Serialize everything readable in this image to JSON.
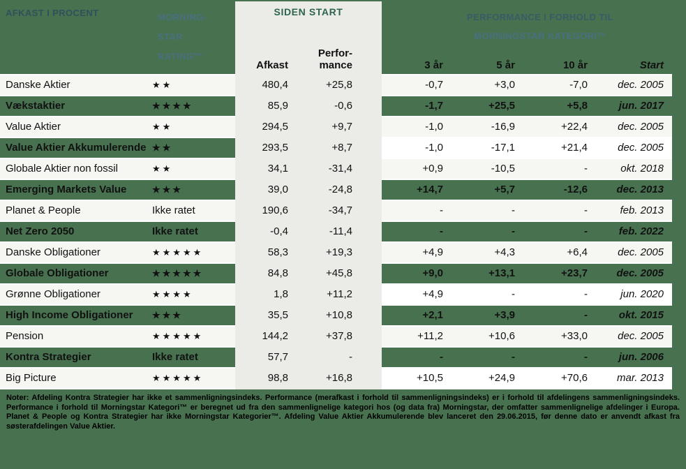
{
  "colors": {
    "page_green": "#47714F",
    "row_tint": "#F6F6F2",
    "row_white": "#FFFFFF",
    "gray_block": "#EBECE7",
    "header_title_dark": "#31505C",
    "header_title_light": "#4A7080",
    "siden_start_text": "#2E6350",
    "body_text": "#111111"
  },
  "header": {
    "left_title": "AFKAST I PROCENT",
    "rating_title_lines": [
      "MORNING-",
      "STAR",
      "RATING™"
    ],
    "siden_start_title": "SIDEN START",
    "afkast_label": "Afkast",
    "performance_label_lines": [
      "Perfor-",
      "mance"
    ],
    "right_title_lines": [
      "PERFORMANCE I FORHOLD TIL",
      "MORNINGSTAR KATEGORI™"
    ],
    "period_labels": {
      "y3": "3 år",
      "y5": "5 år",
      "y10": "10 år",
      "start": "Start"
    }
  },
  "rows": [
    {
      "name": "Danske Aktier",
      "rating": "★★",
      "afkast": "480,4",
      "performance": "+25,8",
      "y3": "-0,7",
      "y5": "+3,0",
      "y10": "-7,0",
      "start": "dec. 2005",
      "left_bg": "tint",
      "right_bg": "tint"
    },
    {
      "name": "Vækstaktier",
      "rating": "★★★★",
      "afkast": "85,9",
      "performance": "-0,6",
      "y3": "-1,7",
      "y5": "+25,5",
      "y10": "+5,8",
      "start": "jun. 2017",
      "left_bg": "green",
      "right_bg": "green"
    },
    {
      "name": "Value Aktier",
      "rating": "★★",
      "afkast": "294,5",
      "performance": "+9,7",
      "y3": "-1,0",
      "y5": "-16,9",
      "y10": "+22,4",
      "start": "dec. 2005",
      "left_bg": "tint",
      "right_bg": "tint"
    },
    {
      "name": "Value Aktier Akkumulerende",
      "rating": "★★",
      "afkast": "293,5",
      "performance": "+8,7",
      "y3": "-1,0",
      "y5": "-17,1",
      "y10": "+21,4",
      "start": "dec. 2005",
      "left_bg": "green",
      "right_bg": "white"
    },
    {
      "name": "Globale Aktier non fossil",
      "rating": "★★",
      "afkast": "34,1",
      "performance": "-31,4",
      "y3": "+0,9",
      "y5": "-10,5",
      "y10": "-",
      "start": "okt. 2018",
      "left_bg": "tint",
      "right_bg": "tint"
    },
    {
      "name": "Emerging Markets Value",
      "rating": "★★★",
      "afkast": "39,0",
      "performance": "-24,8",
      "y3": "+14,7",
      "y5": "+5,7",
      "y10": "-12,6",
      "start": "dec. 2013",
      "left_bg": "green",
      "right_bg": "green"
    },
    {
      "name": "Planet & People",
      "rating": "Ikke ratet",
      "afkast": "190,6",
      "performance": "-34,7",
      "y3": "-",
      "y5": "-",
      "y10": "-",
      "start": "feb. 2013",
      "left_bg": "tint",
      "right_bg": "tint"
    },
    {
      "name": "Net Zero 2050",
      "rating": "Ikke ratet",
      "afkast": "-0,4",
      "performance": "-11,4",
      "y3": "-",
      "y5": "-",
      "y10": "-",
      "start": "feb. 2022",
      "left_bg": "green",
      "right_bg": "green"
    },
    {
      "name": "Danske Obligationer",
      "rating": "★★★★★",
      "afkast": "58,3",
      "performance": "+19,3",
      "y3": "+4,9",
      "y5": "+4,3",
      "y10": "+6,4",
      "start": "dec. 2005",
      "left_bg": "tint",
      "right_bg": "tint"
    },
    {
      "name": "Globale Obligationer",
      "rating": "★★★★★",
      "afkast": "84,8",
      "performance": "+45,8",
      "y3": "+9,0",
      "y5": "+13,1",
      "y10": "+23,7",
      "start": "dec. 2005",
      "left_bg": "green",
      "right_bg": "green"
    },
    {
      "name": "Grønne Obligationer",
      "rating": "★★★★",
      "afkast": "1,8",
      "performance": "+11,2",
      "y3": "+4,9",
      "y5": "-",
      "y10": "-",
      "start": "jun. 2020",
      "left_bg": "tint",
      "right_bg": "white"
    },
    {
      "name": "High Income Obligationer",
      "rating": "★★★",
      "afkast": "35,5",
      "performance": "+10,8",
      "y3": "+2,1",
      "y5": "+3,9",
      "y10": "-",
      "start": "okt. 2015",
      "left_bg": "green",
      "right_bg": "green"
    },
    {
      "name": "Pension",
      "rating": "★★★★★",
      "afkast": "144,2",
      "performance": "+37,8",
      "y3": "+11,2",
      "y5": "+10,6",
      "y10": "+33,0",
      "start": "dec. 2005",
      "left_bg": "tint",
      "right_bg": "tint"
    },
    {
      "name": "Kontra Strategier",
      "rating": "Ikke ratet",
      "afkast": "57,7",
      "performance": "-",
      "y3": "-",
      "y5": "-",
      "y10": "-",
      "start": "jun. 2006",
      "left_bg": "green",
      "right_bg": "green"
    },
    {
      "name": "Big Picture",
      "rating": "★★★★★",
      "afkast": "98,8",
      "performance": "+16,8",
      "y3": "+10,5",
      "y5": "+24,9",
      "y10": "+70,6",
      "start": "mar. 2013",
      "left_bg": "tint",
      "right_bg": "white"
    }
  ],
  "notes": "Noter: Afdeling Kontra Strategier har ikke et sammenligningsindeks. Performance (merafkast i forhold til sammenligningsindeks) er i forhold til afdelingens sammenligningsindeks. Performance i forhold til Morningstar Kategori™ er beregnet ud fra den sammenlignelige kategori hos (og data fra) Morningstar, der omfatter sammenlignelige afdelinger i Europa. Planet & People og Kontra Strategier har ikke Morningstar Kategorier™. Afdeling Value Aktier Akkumulerende blev lanceret den 29.06.2015, før denne dato er anvendt afkast fra søsterafdelingen Value Aktier."
}
